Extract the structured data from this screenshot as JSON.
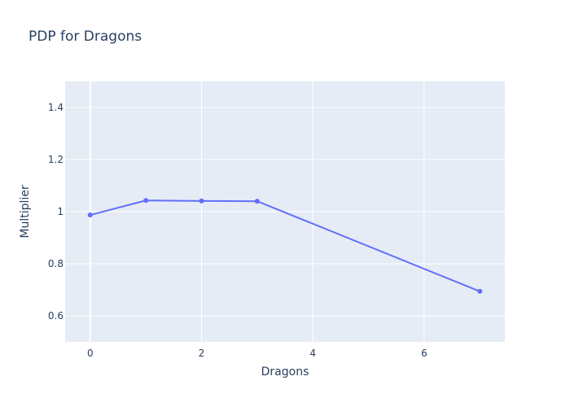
{
  "chart_data": {
    "type": "line",
    "title": "PDP for Dragons",
    "xlabel": "Dragons",
    "ylabel": "Multiplier",
    "xlim": [
      -0.45,
      7.45
    ],
    "ylim": [
      0.5,
      1.5
    ],
    "xticks": [
      0,
      2,
      4,
      6
    ],
    "yticks": [
      0.6,
      0.8,
      1,
      1.2,
      1.4
    ],
    "grid": true,
    "series": [
      {
        "color": "#636efa",
        "x": [
          0,
          1,
          2,
          3,
          7
        ],
        "y": [
          0.987,
          1.043,
          1.041,
          1.04,
          0.694
        ]
      }
    ]
  },
  "colors": {
    "plot_bg": "#e5ecf6",
    "grid": "#ffffff",
    "text": "#2a3f5f"
  }
}
